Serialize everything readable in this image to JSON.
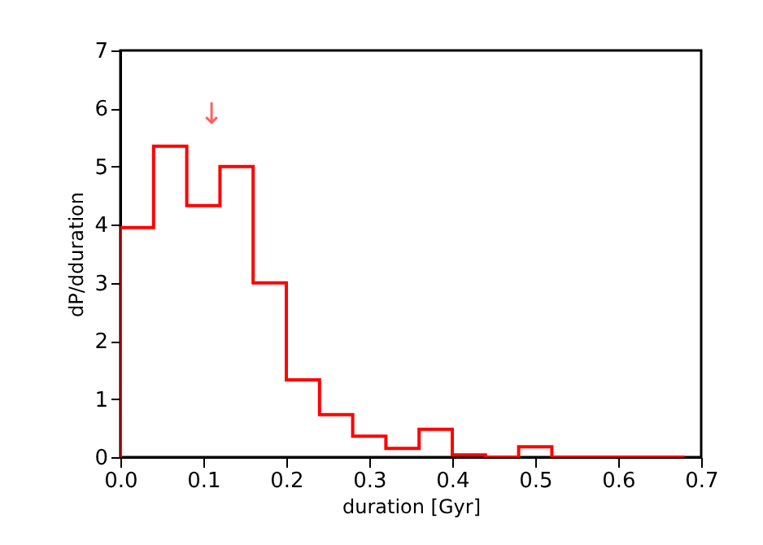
{
  "chart_data": {
    "type": "histogram",
    "xlabel": "duration [Gyr]",
    "ylabel": "dP/dduration",
    "bins": [
      0,
      0.04,
      0.08,
      0.12,
      0.16,
      0.2,
      0.24,
      0.28,
      0.32,
      0.36,
      0.4,
      0.44,
      0.48,
      0.52,
      0.56,
      0.6,
      0.64,
      0.68
    ],
    "values": [
      3.95,
      5.35,
      4.33,
      5.0,
      3.0,
      1.33,
      0.73,
      0.36,
      0.15,
      0.48,
      0.04,
      0,
      0.18,
      0,
      0,
      0,
      0
    ],
    "color": "#ff0000",
    "xlim": [
      0,
      0.7
    ],
    "xticks": [
      {
        "value": 0,
        "label": "0.0"
      },
      0.1,
      0.2,
      0.3,
      0.4,
      0.5,
      0.6,
      0.7
    ],
    "ylim": [
      0,
      7
    ],
    "yticks": [
      0,
      1,
      2,
      3,
      4,
      5,
      6,
      7
    ],
    "grid": false,
    "annotations": [
      "↓"
    ]
  }
}
